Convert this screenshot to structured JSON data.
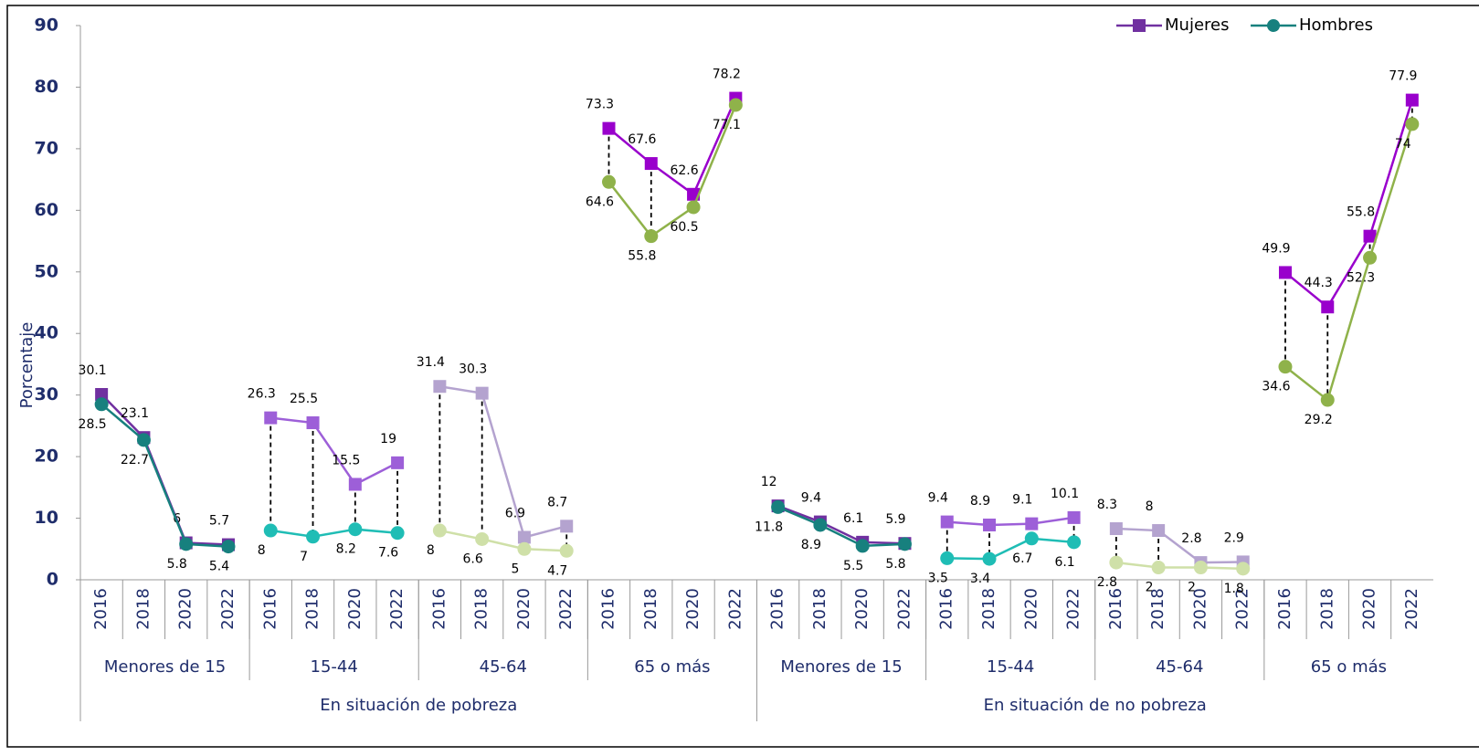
{
  "chart_data": {
    "type": "line",
    "y_label": "Porcentaje",
    "categories": [
      "2016",
      "2018",
      "2020",
      "2022",
      "2016",
      "2018",
      "2020",
      "2022",
      "2016",
      "2018",
      "2020",
      "2022",
      "2016",
      "2018",
      "2020",
      "2022",
      "2016",
      "2018",
      "2020",
      "2022",
      "2016",
      "2018",
      "2020",
      "2022",
      "2016",
      "2018",
      "2020",
      "2022",
      "2016",
      "2018",
      "2020",
      "2022"
    ],
    "age_groups": [
      "Menores de 15",
      "15-44",
      "45-64",
      "65 o más",
      "Menores de 15",
      "15-44",
      "45-64",
      "65 o más"
    ],
    "sections": [
      "En situación de pobreza",
      "En situación de no pobreza"
    ],
    "series": [
      {
        "name": "Mujeres",
        "color": "#7030a0",
        "marker": "square",
        "group_colors": [
          "#7030a0",
          "#9d5fd8",
          "#b4a3cf",
          "#9900cc",
          "#7030a0",
          "#9d5fd8",
          "#b4a3cf",
          "#9900cc"
        ],
        "values": [
          30.1,
          23.1,
          6.0,
          5.7,
          26.3,
          25.5,
          15.5,
          19.0,
          31.4,
          30.3,
          6.9,
          8.7,
          73.3,
          67.6,
          62.6,
          78.2,
          12.0,
          9.4,
          6.1,
          5.9,
          9.4,
          8.9,
          9.1,
          10.1,
          8.3,
          8.0,
          2.8,
          2.9,
          49.9,
          44.3,
          55.8,
          77.9
        ]
      },
      {
        "name": "Hombres",
        "color": "#17807e",
        "marker": "circle",
        "group_colors": [
          "#17807e",
          "#1fbdb5",
          "#cfe0a8",
          "#8fb24a",
          "#17807e",
          "#1fbdb5",
          "#cfe0a8",
          "#8fb24a"
        ],
        "values": [
          28.5,
          22.7,
          5.8,
          5.4,
          8.0,
          7.0,
          8.2,
          7.6,
          8.0,
          6.6,
          5.0,
          4.7,
          64.6,
          55.8,
          60.5,
          77.1,
          11.8,
          8.9,
          5.5,
          5.8,
          3.5,
          3.4,
          6.7,
          6.1,
          2.8,
          2.0,
          2.0,
          1.8,
          34.6,
          29.2,
          52.3,
          74.0
        ]
      }
    ],
    "dropline_groups": [
      false,
      true,
      true,
      true,
      false,
      true,
      true,
      true
    ],
    "ylim": [
      0,
      90
    ],
    "yticks": [
      0,
      10,
      20,
      30,
      40,
      50,
      60,
      70,
      80,
      90
    ],
    "legend": "top-right"
  }
}
